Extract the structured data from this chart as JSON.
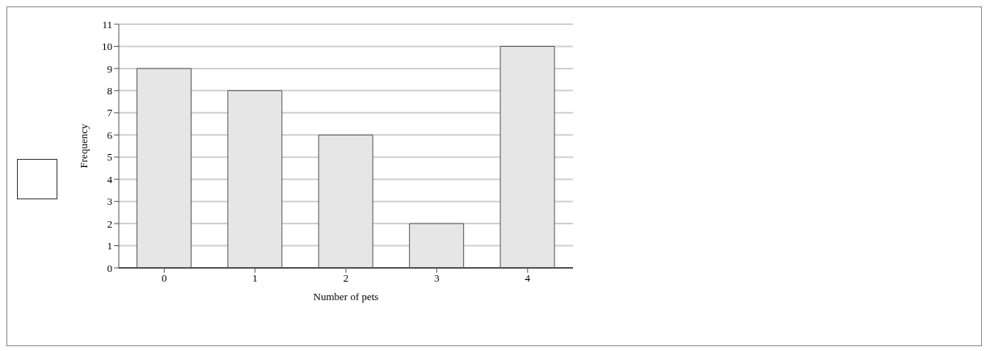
{
  "chart_data": {
    "type": "bar",
    "xlabel": "Number of pets",
    "ylabel": "Frequency",
    "categories": [
      "0",
      "1",
      "2",
      "3",
      "4"
    ],
    "values": [
      9,
      8,
      6,
      2,
      10
    ],
    "color": "#e6e6e6",
    "ylim": [
      0,
      11
    ],
    "yticks": [
      0,
      1,
      2,
      3,
      4,
      5,
      6,
      7,
      8,
      9,
      10,
      11
    ],
    "grid": "y"
  }
}
